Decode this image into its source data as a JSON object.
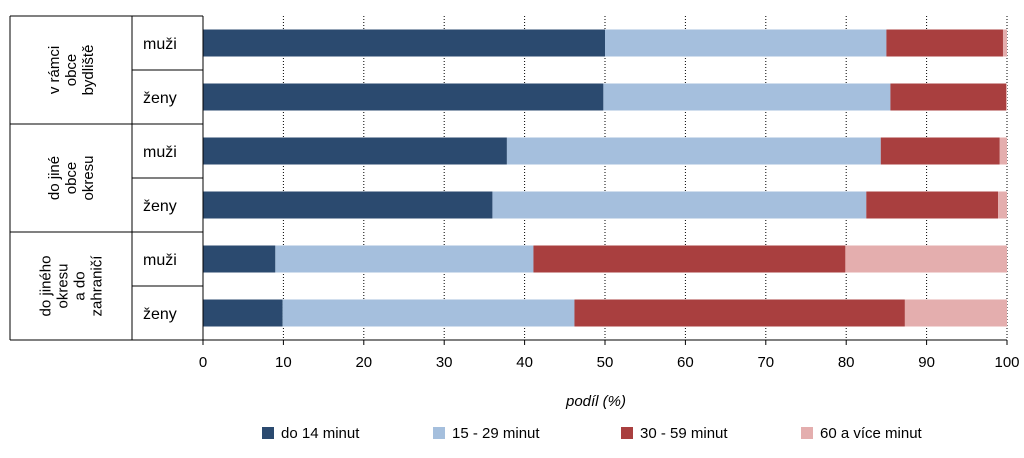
{
  "chart_data": {
    "type": "bar",
    "orientation": "horizontal",
    "stacked": true,
    "xlabel": "podíl (%)",
    "xlim": [
      0,
      100
    ],
    "xticks": [
      0,
      10,
      20,
      30,
      40,
      50,
      60,
      70,
      80,
      90,
      100
    ],
    "grid": "vertical-dotted",
    "legend_position": "bottom",
    "groups": [
      {
        "label": "v rámci obce bydliště",
        "lines": [
          "v rámci",
          "obce",
          "bydliště"
        ]
      },
      {
        "label": "do jiné obce okresu",
        "lines": [
          "do jiné",
          "obce",
          "okresu"
        ]
      },
      {
        "label": "do jiného okresu a do zahraničí",
        "lines": [
          "do jiného",
          "okresu",
          "a do",
          "zahraničí"
        ]
      }
    ],
    "categories": [
      "muži",
      "ženy",
      "muži",
      "ženy",
      "muži",
      "ženy"
    ],
    "series": [
      {
        "name": "do 14 minut",
        "color": "#2b4a6f",
        "values": [
          50.0,
          49.8,
          37.8,
          36.0,
          9.0,
          9.9
        ]
      },
      {
        "name": "15 - 29 minut",
        "color": "#a5bfdd",
        "values": [
          35.0,
          35.7,
          46.5,
          46.5,
          32.1,
          36.3
        ]
      },
      {
        "name": "30 - 59 minut",
        "color": "#a93f3f",
        "values": [
          14.5,
          14.4,
          14.8,
          16.4,
          38.8,
          41.1
        ]
      },
      {
        "name": "60 a více minut",
        "color": "#e4aeae",
        "values": [
          0.5,
          0.1,
          0.9,
          1.1,
          20.1,
          12.7
        ]
      }
    ]
  }
}
